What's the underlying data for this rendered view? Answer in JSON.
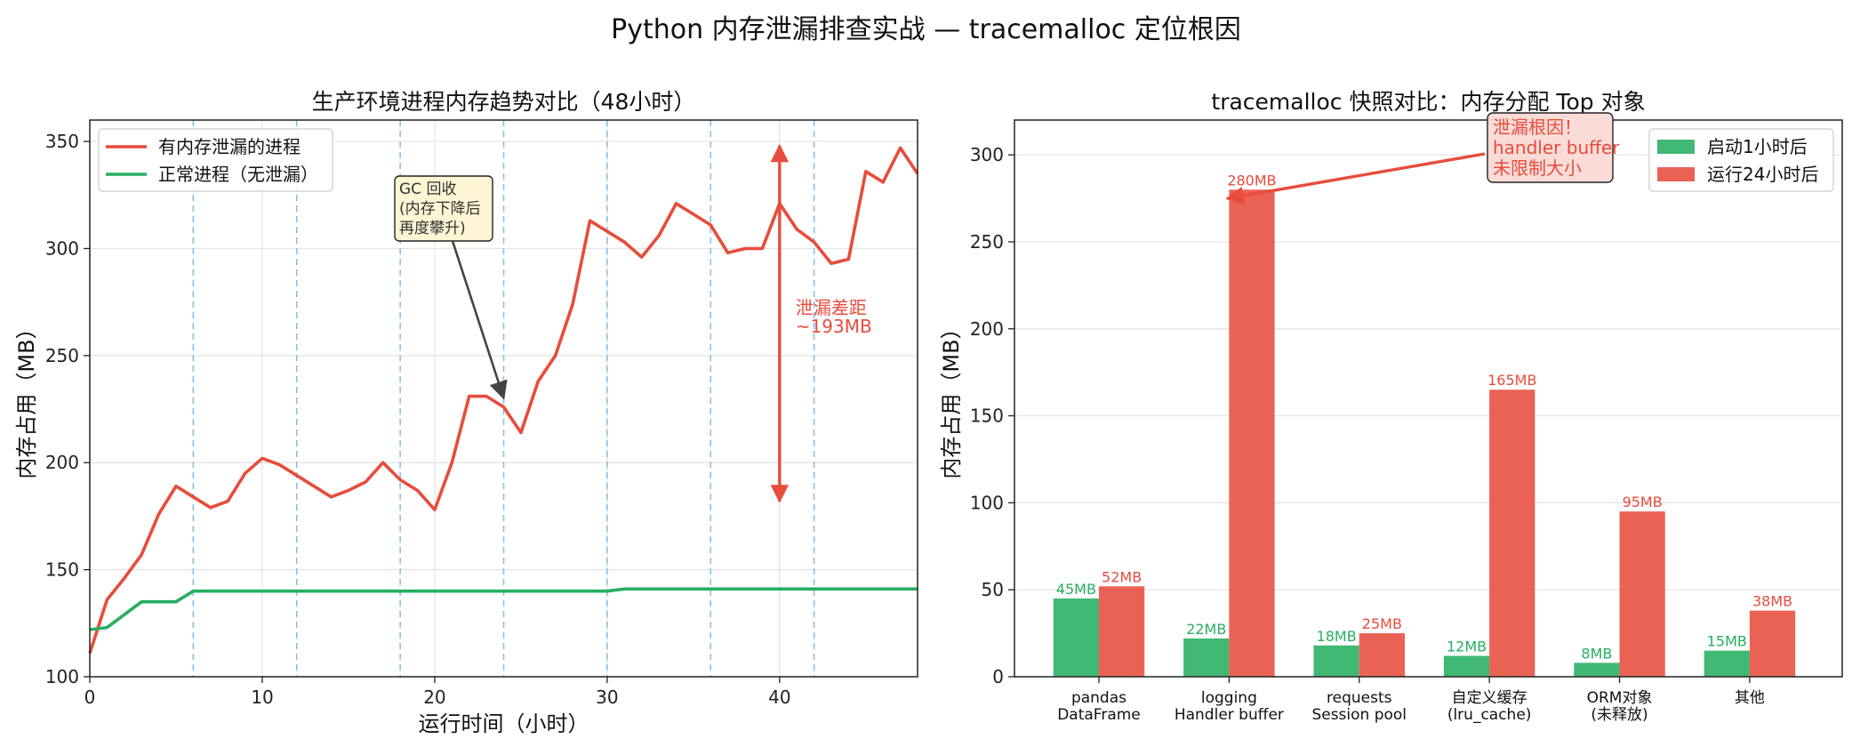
{
  "title": "Python 内存泄漏排查实战 — tracemalloc 定位根因",
  "colors": {
    "leak": "#e74c3c",
    "normal": "#27ae60",
    "gc_line": "#85c1e9",
    "gc_box": "#fef5d4",
    "root_box": "#fadbd8"
  },
  "chart_data": [
    {
      "type": "line",
      "title": "生产环境进程内存趋势对比（48小时）",
      "xlabel": "运行时间（小时）",
      "ylabel": "内存占用（MB）",
      "xlim": [
        0,
        48
      ],
      "ylim": [
        100,
        360
      ],
      "xticks": [
        0,
        10,
        20,
        30,
        40
      ],
      "yticks": [
        100,
        150,
        200,
        250,
        300,
        350
      ],
      "grid": true,
      "legend": "top-left",
      "x": [
        0,
        1,
        2,
        3,
        4,
        5,
        6,
        7,
        8,
        9,
        10,
        11,
        12,
        13,
        14,
        15,
        16,
        17,
        18,
        19,
        20,
        21,
        22,
        23,
        24,
        25,
        26,
        27,
        28,
        29,
        30,
        31,
        32,
        33,
        34,
        35,
        36,
        37,
        38,
        39,
        40,
        41,
        42,
        43,
        44,
        45,
        46,
        47,
        48
      ],
      "series": [
        {
          "name": "有内存泄漏的进程",
          "color": "#e74c3c",
          "values": [
            111,
            136,
            146,
            157,
            176,
            189,
            184,
            179,
            182,
            195,
            202,
            199,
            194,
            189,
            184,
            187,
            191,
            200,
            192,
            187,
            178,
            200,
            231,
            231,
            226,
            214,
            238,
            250,
            274,
            313,
            308,
            303,
            296,
            306,
            321,
            316,
            311,
            298,
            300,
            300,
            321,
            309,
            303,
            293,
            295,
            336,
            331,
            347,
            335
          ]
        },
        {
          "name": "正常进程（无泄漏）",
          "color": "#27ae60",
          "values": [
            122,
            123,
            129,
            135,
            135,
            135,
            140,
            140,
            140,
            140,
            140,
            140,
            140,
            140,
            140,
            140,
            140,
            140,
            140,
            140,
            140,
            140,
            140,
            140,
            140,
            140,
            140,
            140,
            140,
            140,
            140,
            141,
            141,
            141,
            141,
            141,
            141,
            141,
            141,
            141,
            141,
            141,
            141,
            141,
            141,
            141,
            141,
            141,
            141
          ]
        }
      ],
      "gc_times": [
        6,
        12,
        18,
        24,
        30,
        36,
        42
      ],
      "annotations": {
        "gc": {
          "lines": [
            "GC 回收",
            "(内存下降后",
            "再度攀升)"
          ],
          "target": [
            24,
            226
          ]
        },
        "gap": {
          "lines": [
            "泄漏差距",
            "~193MB"
          ],
          "x": 40,
          "y_from": 182,
          "y_to": 348
        }
      }
    },
    {
      "type": "bar",
      "title": "tracemalloc 快照对比：内存分配 Top 对象",
      "xlabel": "",
      "ylabel": "内存占用（MB）",
      "ylim": [
        0,
        320
      ],
      "yticks": [
        0,
        50,
        100,
        150,
        200,
        250,
        300
      ],
      "grid": true,
      "legend": "top-right",
      "categories": [
        [
          "pandas",
          "DataFrame"
        ],
        [
          "logging",
          "Handler buffer"
        ],
        [
          "requests",
          "Session pool"
        ],
        [
          "自定义缓存",
          "(lru_cache)"
        ],
        [
          "ORM对象",
          "(未释放)"
        ],
        [
          "其他"
        ]
      ],
      "series": [
        {
          "name": "启动1小时后",
          "color": "#27ae60",
          "values": [
            45,
            22,
            18,
            12,
            8,
            15
          ],
          "labels": [
            "45MB",
            "22MB",
            "18MB",
            "12MB",
            "8MB",
            "15MB"
          ]
        },
        {
          "name": "运行24小时后",
          "color": "#e74c3c",
          "values": [
            52,
            280,
            25,
            165,
            95,
            38
          ],
          "labels": [
            "52MB",
            "280MB",
            "25MB",
            "165MB",
            "95MB",
            "38MB"
          ]
        }
      ],
      "annotations": {
        "root": {
          "lines": [
            "泄漏根因！",
            "handler buffer",
            "未限制大小"
          ],
          "target_category": 1,
          "target_value": 280
        }
      }
    }
  ]
}
